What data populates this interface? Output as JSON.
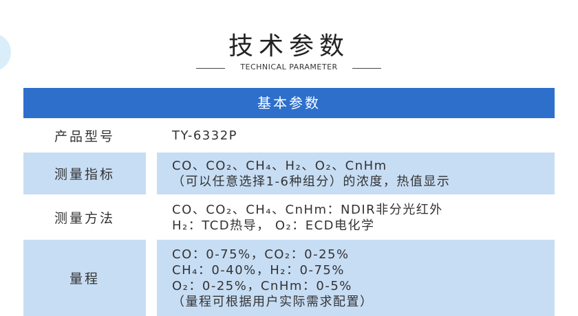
{
  "header": {
    "title": "技术参数",
    "subtitle": "TECHNICAL PARAMETER"
  },
  "table": {
    "heading": "基本参数",
    "rows": [
      {
        "label": "产品型号",
        "lines": [
          "TY-6332P"
        ]
      },
      {
        "label": "测量指标",
        "lines": [
          "CO、CO₂、CH₄、H₂、O₂、CnHm",
          "（可以任意选择1-6种组分）的浓度，热值显示"
        ]
      },
      {
        "label": "测量方法",
        "lines": [
          "CO、CO₂、CH₄、CnHm：NDIR非分光红外",
          "H₂：TCD热导， O₂：ECD电化学"
        ]
      },
      {
        "label": "量程",
        "lines": [
          "CO：0-75%，CO₂：0-25%",
          "CH₄：0-40%，H₂：0-75%",
          "O₂：0-25%，CnHm：0-5%",
          "（量程可根据用户实际需求配置）"
        ]
      }
    ]
  }
}
